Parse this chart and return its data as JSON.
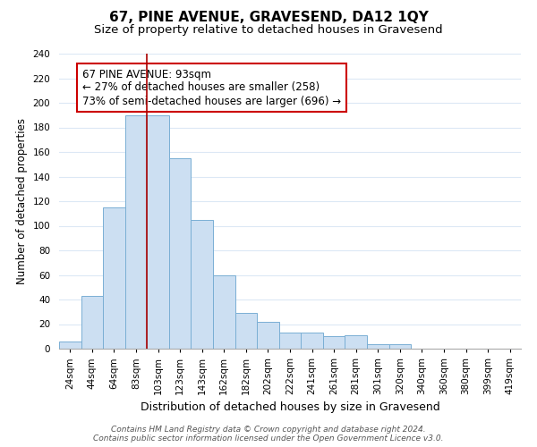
{
  "title": "67, PINE AVENUE, GRAVESEND, DA12 1QY",
  "subtitle": "Size of property relative to detached houses in Gravesend",
  "xlabel": "Distribution of detached houses by size in Gravesend",
  "ylabel": "Number of detached properties",
  "bar_labels": [
    "24sqm",
    "44sqm",
    "64sqm",
    "83sqm",
    "103sqm",
    "123sqm",
    "143sqm",
    "162sqm",
    "182sqm",
    "202sqm",
    "222sqm",
    "241sqm",
    "261sqm",
    "281sqm",
    "301sqm",
    "320sqm",
    "340sqm",
    "360sqm",
    "380sqm",
    "399sqm",
    "419sqm"
  ],
  "bar_values": [
    6,
    43,
    115,
    190,
    190,
    155,
    105,
    60,
    29,
    22,
    13,
    13,
    10,
    11,
    4,
    4,
    0,
    0,
    0,
    0,
    0
  ],
  "bar_color": "#ccdff2",
  "bar_edge_color": "#7aafd4",
  "vline_color": "#aa0000",
  "vline_x_index": 3.5,
  "annotation_box_text_line1": "67 PINE AVENUE: 93sqm",
  "annotation_box_text_line2": "← 27% of detached houses are smaller (258)",
  "annotation_box_text_line3": "73% of semi-detached houses are larger (696) →",
  "ylim": [
    0,
    240
  ],
  "yticks": [
    0,
    20,
    40,
    60,
    80,
    100,
    120,
    140,
    160,
    180,
    200,
    220,
    240
  ],
  "footer_line1": "Contains HM Land Registry data © Crown copyright and database right 2024.",
  "footer_line2": "Contains public sector information licensed under the Open Government Licence v3.0.",
  "title_fontsize": 11,
  "subtitle_fontsize": 9.5,
  "xlabel_fontsize": 9,
  "ylabel_fontsize": 8.5,
  "tick_fontsize": 7.5,
  "annotation_fontsize": 8.5,
  "footer_fontsize": 6.5,
  "bg_color": "#ffffff",
  "grid_color": "#dce8f5"
}
